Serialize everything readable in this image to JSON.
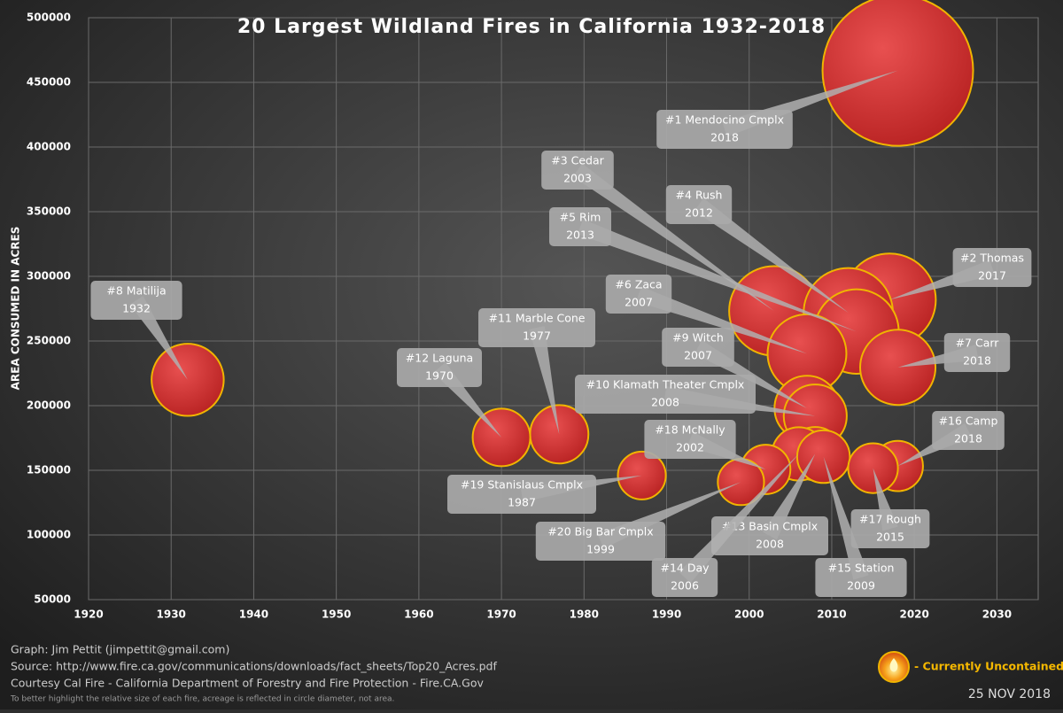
{
  "chart_data": {
    "type": "bubble",
    "title": "20 Largest Wildland Fires in California 1932-2018",
    "y_label": "AREA CONSUMED IN ACRES",
    "xlim": [
      1920,
      2035
    ],
    "xticks": [
      1920,
      1930,
      1940,
      1950,
      1960,
      1970,
      1980,
      1990,
      2000,
      2010,
      2020,
      2030
    ],
    "ylim": [
      50000,
      500000
    ],
    "yticks": [
      50000,
      100000,
      150000,
      200000,
      250000,
      300000,
      350000,
      400000,
      450000,
      500000
    ],
    "grid": true,
    "color": "#d9403c",
    "edge_color": "#f0b400",
    "series": [
      {
        "name": "Fires",
        "labels": [
          "#1 Mendocino Cmplx",
          "#2 Thomas",
          "#3 Cedar",
          "#4 Rush",
          "#5 Rim",
          "#6 Zaca",
          "#7 Carr",
          "#8 Matilija",
          "#9 Witch",
          "#10 Klamath Theater Cmplx",
          "#11 Marble Cone",
          "#12 Laguna",
          "#13 Basin Cmplx",
          "#14 Day",
          "#15 Station",
          "#16 Camp",
          "#17 Rough",
          "#18 McNally",
          "#19 Stanislaus Cmplx",
          "#20 Big Bar Cmplx"
        ],
        "x": [
          2018,
          2017,
          2003,
          2012,
          2013,
          2007,
          2018,
          1932,
          2007,
          2008,
          1977,
          1970,
          2008,
          2006,
          2009,
          2018,
          2015,
          2002,
          1987,
          1999
        ],
        "values": [
          459123,
          281893,
          273246,
          271911,
          257314,
          240207,
          229651,
          220000,
          197990,
          192038,
          177866,
          175425,
          162818,
          162702,
          160557,
          153336,
          151623,
          150696,
          145980,
          140948
        ]
      }
    ],
    "legend_label": "- Currently Uncontained",
    "footer": [
      "Graph: Jim Pettit (jimpettit@gmail.com)",
      "Source: http://www.fire.ca.gov/communications/downloads/fact_sheets/Top20_Acres.pdf",
      "Courtesy Cal Fire - California  Department of Forestry and Fire Protection - Fire.CA.Gov",
      "To better highlight the relative size of each fire, acreage is reflected in circle diameter, not area."
    ],
    "date": "25 NOV 2018"
  }
}
